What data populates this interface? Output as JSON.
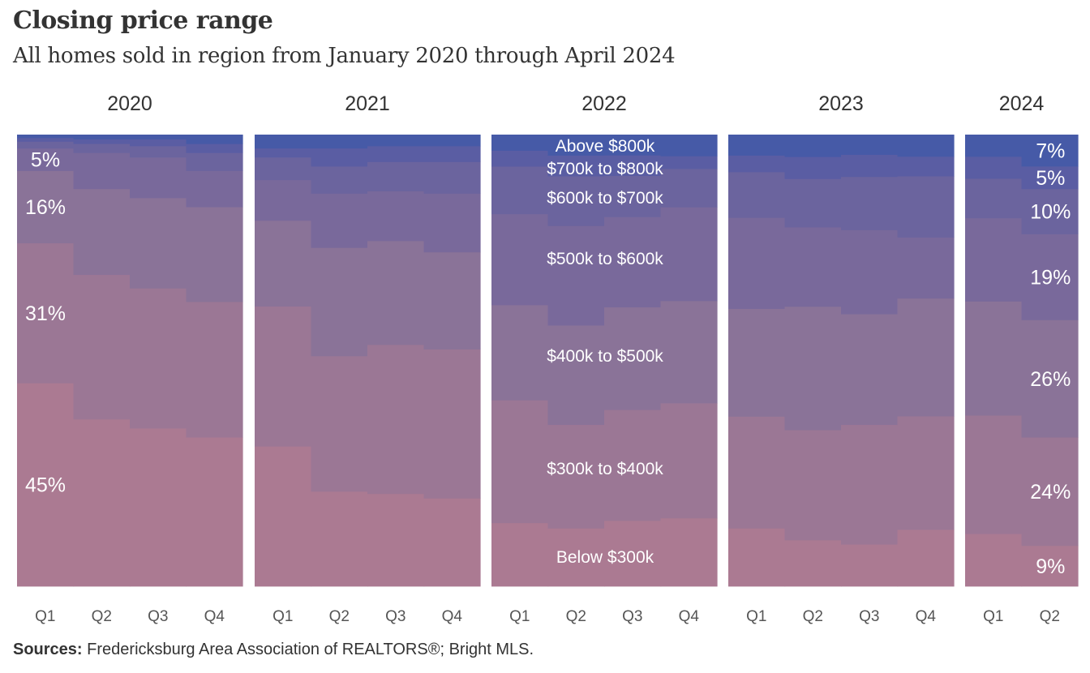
{
  "header": {
    "title": "Closing price range",
    "subtitle": "All homes sold in region from January 2020 through April 2024"
  },
  "footer": {
    "sources_label": "Sources:",
    "sources_text": "Fredericksburg  Area Association of REALTORS®;  Bright MLS."
  },
  "chart_data": {
    "type": "area",
    "stacking": "percent",
    "title": "Closing price range",
    "subtitle": "All homes sold in region from January 2020 through April 2024",
    "ylim": [
      0,
      100
    ],
    "grid": false,
    "legend": "inline labels in 2022 panel",
    "categories": [
      "Below $300k",
      "$300k to $400k",
      "$400k to $500k",
      "$500k to $600k",
      "$600k to $700k",
      "$700k to $800k",
      "Above $800k"
    ],
    "colors": [
      "#ab7a92",
      "#9b7795",
      "#8a7398",
      "#79699b",
      "#6b649e",
      "#5a5da3",
      "#465aa7"
    ],
    "panels": [
      {
        "year": "2020",
        "quarters": [
          "Q1",
          "Q2",
          "Q3",
          "Q4"
        ],
        "values": [
          [
            45,
            31,
            16,
            5,
            1.5,
            0.8,
            0.7
          ],
          [
            37,
            32,
            19,
            8,
            2,
            1,
            1
          ],
          [
            35,
            31,
            20,
            9,
            2.5,
            1.5,
            1
          ],
          [
            33,
            30,
            21,
            8,
            4,
            2,
            2
          ]
        ]
      },
      {
        "year": "2021",
        "quarters": [
          "Q1",
          "Q2",
          "Q3",
          "Q4"
        ],
        "values": [
          [
            31,
            31,
            19,
            9,
            5,
            2,
            3
          ],
          [
            21,
            30,
            24,
            12,
            6,
            4,
            3
          ],
          [
            20.5,
            33,
            23,
            11,
            6.5,
            3.5,
            2.5
          ],
          [
            19.5,
            33,
            21.5,
            13,
            7,
            3.5,
            2.5
          ]
        ]
      },
      {
        "year": "2022",
        "quarters": [
          "Q1",
          "Q2",
          "Q3",
          "Q4"
        ],
        "labeled": [
          {
            "series_index": 0,
            "text": "Below $300k",
            "y_mid": 6.5
          },
          {
            "series_index": 1,
            "text": "$300k to $400k",
            "y_mid": 26
          },
          {
            "series_index": 2,
            "text": "$400k to $500k",
            "y_mid": 51
          },
          {
            "series_index": 3,
            "text": "$500k to $600k",
            "y_mid": 72.5
          },
          {
            "series_index": 4,
            "text": "$600k to $700k",
            "y_mid": 86
          },
          {
            "series_index": 5,
            "text": "$700k to $800k",
            "y_mid": 92.5
          },
          {
            "series_index": 6,
            "text": "Above $800k",
            "y_mid": 97.5
          }
        ],
        "values": [
          [
            16,
            31,
            24,
            23,
            12,
            4,
            4
          ],
          [
            14,
            25,
            24,
            24,
            12,
            5,
            5
          ],
          [
            16,
            27,
            25,
            22,
            10,
            5,
            5
          ],
          [
            16,
            27,
            24,
            22,
            9,
            3,
            5
          ]
        ]
      },
      {
        "year": "2023",
        "quarters": [
          "Q1",
          "Q2",
          "Q3",
          "Q4"
        ],
        "values": [
          [
            14,
            27,
            26,
            22,
            11,
            4,
            5
          ],
          [
            10.5,
            25,
            28,
            18,
            11,
            5,
            5
          ],
          [
            9.5,
            27,
            25,
            19,
            12,
            5,
            4.5
          ],
          [
            13,
            26,
            27,
            14,
            14,
            4.5,
            5
          ]
        ]
      },
      {
        "year": "2024",
        "quarters": [
          "Q1",
          "Q2"
        ],
        "label_quarter_index": 1,
        "values": [
          [
            12,
            27,
            26,
            19,
            9,
            5,
            5
          ],
          [
            9,
            24,
            26,
            19,
            10,
            5,
            7
          ]
        ]
      }
    ],
    "left_labels": [
      {
        "panel": "2020",
        "text": "45%",
        "y_mid": 22.5
      },
      {
        "panel": "2020",
        "text": "31%",
        "y_mid": 60.5
      },
      {
        "panel": "2020",
        "text": "16%",
        "y_mid": 84
      },
      {
        "panel": "2020",
        "text": "5%",
        "y_mid": 94.5
      }
    ],
    "right_labels": [
      {
        "panel": "2024",
        "text": "9%",
        "y_mid": 4.5
      },
      {
        "panel": "2024",
        "text": "24%",
        "y_mid": 21
      },
      {
        "panel": "2024",
        "text": "26%",
        "y_mid": 46
      },
      {
        "panel": "2024",
        "text": "19%",
        "y_mid": 68.5
      },
      {
        "panel": "2024",
        "text": "10%",
        "y_mid": 83
      },
      {
        "panel": "2024",
        "text": "5%",
        "y_mid": 90.5
      },
      {
        "panel": "2024",
        "text": "7%",
        "y_mid": 96.5
      }
    ]
  }
}
